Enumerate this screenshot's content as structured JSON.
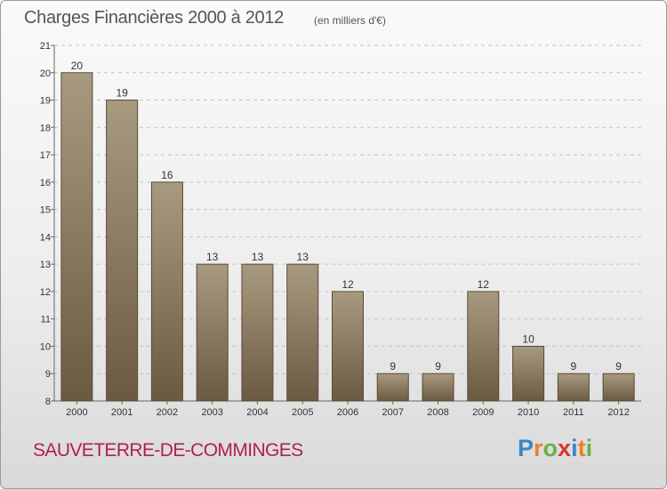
{
  "header": {
    "title": "Charges Financières 2000 à 2012",
    "subtitle": "(en milliers d'€)"
  },
  "footer": {
    "commune": "SAUVETERRE-DE-COMMINGES",
    "brand_letters": [
      "P",
      "r",
      "o",
      "x",
      "i",
      "t",
      "i"
    ],
    "brand_colors": [
      "#3a86c8",
      "#e8832a",
      "#6ab04c",
      "#d9342b",
      "#3a86c8",
      "#e8832a",
      "#6ab04c"
    ]
  },
  "chart_data": {
    "type": "bar",
    "categories": [
      "2000",
      "2001",
      "2002",
      "2003",
      "2004",
      "2005",
      "2006",
      "2007",
      "2008",
      "2009",
      "2010",
      "2011",
      "2012"
    ],
    "values": [
      20,
      19,
      16,
      13,
      13,
      13,
      12,
      9,
      9,
      12,
      10,
      9,
      9
    ],
    "data_labels": [
      "20",
      "19",
      "16",
      "13",
      "13",
      "13",
      "12",
      "9",
      "9",
      "12",
      "10",
      "9",
      "9"
    ],
    "yticks": [
      8,
      9,
      10,
      11,
      12,
      13,
      14,
      15,
      16,
      17,
      18,
      19,
      20,
      21
    ],
    "ylim": [
      8,
      21
    ],
    "grid": true,
    "colors": {
      "bar_top": "#a89a80",
      "bar_bottom": "#6b5a42",
      "bar_border": "#5a4a34"
    }
  }
}
